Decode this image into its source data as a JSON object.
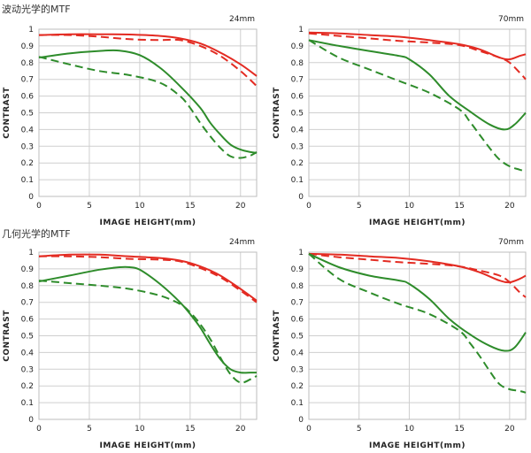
{
  "sections": [
    {
      "title": "波动光学的MTF"
    },
    {
      "title": "几何光学的MTF"
    }
  ],
  "colors": {
    "red": "#e32b22",
    "green": "#2e8c2b"
  },
  "chart_data": [
    {
      "type": "line",
      "section": "波动光学的MTF",
      "focal": "24mm",
      "xlabel": "IMAGE HEIGHT(mm)",
      "ylabel": "CONTRAST",
      "xlim": [
        0,
        21.6
      ],
      "ylim": [
        0,
        1
      ],
      "xticks": [
        0,
        5,
        10,
        15,
        20
      ],
      "yticks": [
        0,
        0.1,
        0.2,
        0.3,
        0.4,
        0.5,
        0.6,
        0.7,
        0.8,
        0.9,
        1
      ],
      "grid": true,
      "series": [
        {
          "color": "red",
          "style": "solid",
          "x": [
            0,
            3,
            6,
            9,
            12,
            14,
            16,
            18,
            20,
            21.6
          ],
          "y": [
            0.965,
            0.97,
            0.97,
            0.968,
            0.96,
            0.945,
            0.915,
            0.86,
            0.79,
            0.72
          ]
        },
        {
          "color": "red",
          "style": "dashed",
          "x": [
            0,
            3,
            6,
            9,
            12,
            14,
            16,
            18,
            20,
            21.6
          ],
          "y": [
            0.965,
            0.965,
            0.955,
            0.94,
            0.935,
            0.935,
            0.9,
            0.84,
            0.75,
            0.66
          ]
        },
        {
          "color": "green",
          "style": "solid",
          "x": [
            0,
            3,
            6,
            8,
            10,
            12,
            14,
            16,
            17,
            18,
            19,
            20,
            21,
            21.6
          ],
          "y": [
            0.83,
            0.855,
            0.87,
            0.872,
            0.845,
            0.77,
            0.66,
            0.53,
            0.44,
            0.37,
            0.31,
            0.28,
            0.265,
            0.26
          ]
        },
        {
          "color": "green",
          "style": "dashed",
          "x": [
            0,
            3,
            6,
            9,
            12,
            14,
            15,
            16,
            17,
            18,
            19,
            20,
            21,
            21.6
          ],
          "y": [
            0.835,
            0.79,
            0.75,
            0.725,
            0.68,
            0.6,
            0.53,
            0.44,
            0.36,
            0.29,
            0.24,
            0.23,
            0.245,
            0.265
          ]
        }
      ]
    },
    {
      "type": "line",
      "section": "波动光学的MTF",
      "focal": "70mm",
      "xlabel": "IMAGE HEIGHT(mm)",
      "ylabel": "CONTRAST",
      "xlim": [
        0,
        21.6
      ],
      "ylim": [
        0,
        1
      ],
      "xticks": [
        0,
        5,
        10,
        15,
        20
      ],
      "yticks": [
        0,
        0.1,
        0.2,
        0.3,
        0.4,
        0.5,
        0.6,
        0.7,
        0.8,
        0.9,
        1
      ],
      "grid": true,
      "series": [
        {
          "color": "red",
          "style": "solid",
          "x": [
            0,
            3,
            6,
            9,
            12,
            15,
            17,
            19,
            20,
            21,
            21.6
          ],
          "y": [
            0.98,
            0.975,
            0.965,
            0.955,
            0.935,
            0.91,
            0.88,
            0.83,
            0.82,
            0.84,
            0.85
          ]
        },
        {
          "color": "red",
          "style": "dashed",
          "x": [
            0,
            3,
            6,
            9,
            12,
            15,
            17,
            19,
            20,
            21,
            21.6
          ],
          "y": [
            0.975,
            0.96,
            0.945,
            0.93,
            0.92,
            0.905,
            0.87,
            0.83,
            0.8,
            0.74,
            0.7
          ]
        },
        {
          "color": "green",
          "style": "solid",
          "x": [
            0,
            3,
            6,
            9,
            10,
            12,
            14,
            16,
            18,
            19.5,
            20.5,
            21.6
          ],
          "y": [
            0.935,
            0.9,
            0.87,
            0.84,
            0.82,
            0.73,
            0.6,
            0.51,
            0.43,
            0.4,
            0.43,
            0.5
          ]
        },
        {
          "color": "green",
          "style": "dashed",
          "x": [
            0,
            3,
            6,
            9,
            12,
            15,
            16,
            17,
            18,
            19,
            20,
            21,
            21.6
          ],
          "y": [
            0.935,
            0.83,
            0.76,
            0.69,
            0.62,
            0.52,
            0.45,
            0.37,
            0.29,
            0.22,
            0.18,
            0.16,
            0.15
          ]
        }
      ]
    },
    {
      "type": "line",
      "section": "几何光学的MTF",
      "focal": "24mm",
      "xlabel": "IMAGE HEIGHT(mm)",
      "ylabel": "CONTRAST",
      "xlim": [
        0,
        21.6
      ],
      "ylim": [
        0,
        1
      ],
      "xticks": [
        0,
        5,
        10,
        15,
        20
      ],
      "yticks": [
        0,
        0.1,
        0.2,
        0.3,
        0.4,
        0.5,
        0.6,
        0.7,
        0.8,
        0.9,
        1
      ],
      "grid": true,
      "series": [
        {
          "color": "red",
          "style": "solid",
          "x": [
            0,
            3,
            6,
            9,
            12,
            14,
            16,
            18,
            20,
            21.6
          ],
          "y": [
            0.975,
            0.985,
            0.985,
            0.975,
            0.965,
            0.95,
            0.915,
            0.86,
            0.78,
            0.71
          ]
        },
        {
          "color": "red",
          "style": "dashed",
          "x": [
            0,
            3,
            6,
            9,
            12,
            14,
            16,
            18,
            20,
            21.6
          ],
          "y": [
            0.975,
            0.975,
            0.97,
            0.96,
            0.955,
            0.945,
            0.905,
            0.85,
            0.77,
            0.7
          ]
        },
        {
          "color": "green",
          "style": "solid",
          "x": [
            0,
            3,
            6,
            8,
            9,
            10,
            12,
            14,
            15,
            16,
            17,
            18,
            19,
            20,
            21,
            21.6
          ],
          "y": [
            0.825,
            0.86,
            0.895,
            0.91,
            0.91,
            0.895,
            0.81,
            0.7,
            0.63,
            0.55,
            0.45,
            0.36,
            0.3,
            0.28,
            0.28,
            0.28
          ]
        },
        {
          "color": "green",
          "style": "dashed",
          "x": [
            0,
            3,
            6,
            9,
            12,
            14,
            15,
            16,
            17,
            18,
            19,
            20,
            21,
            21.6
          ],
          "y": [
            0.83,
            0.815,
            0.8,
            0.78,
            0.74,
            0.69,
            0.64,
            0.57,
            0.48,
            0.37,
            0.27,
            0.22,
            0.24,
            0.26
          ]
        }
      ]
    },
    {
      "type": "line",
      "section": "几何光学的MTF",
      "focal": "70mm",
      "xlabel": "IMAGE HEIGHT(mm)",
      "ylabel": "CONTRAST",
      "xlim": [
        0,
        21.6
      ],
      "ylim": [
        0,
        1
      ],
      "xticks": [
        0,
        5,
        10,
        15,
        20
      ],
      "yticks": [
        0,
        0.1,
        0.2,
        0.3,
        0.4,
        0.5,
        0.6,
        0.7,
        0.8,
        0.9,
        1
      ],
      "grid": true,
      "series": [
        {
          "color": "red",
          "style": "solid",
          "x": [
            0,
            3,
            6,
            9,
            12,
            15,
            17,
            19,
            20,
            21,
            21.6
          ],
          "y": [
            0.99,
            0.985,
            0.975,
            0.965,
            0.945,
            0.915,
            0.88,
            0.83,
            0.82,
            0.84,
            0.86
          ]
        },
        {
          "color": "red",
          "style": "dashed",
          "x": [
            0,
            3,
            6,
            9,
            12,
            15,
            17,
            19,
            20,
            21,
            21.6
          ],
          "y": [
            0.99,
            0.97,
            0.955,
            0.94,
            0.93,
            0.915,
            0.89,
            0.86,
            0.82,
            0.76,
            0.73
          ]
        },
        {
          "color": "green",
          "style": "solid",
          "x": [
            0,
            3,
            6,
            9,
            10,
            12,
            14,
            16,
            18,
            19.5,
            20.5,
            21.6
          ],
          "y": [
            0.99,
            0.91,
            0.86,
            0.83,
            0.81,
            0.72,
            0.6,
            0.51,
            0.44,
            0.41,
            0.43,
            0.52
          ]
        },
        {
          "color": "green",
          "style": "dashed",
          "x": [
            0,
            3,
            6,
            9,
            12,
            15,
            16,
            17,
            18,
            19,
            20,
            21,
            21.6
          ],
          "y": [
            0.99,
            0.84,
            0.76,
            0.69,
            0.63,
            0.53,
            0.46,
            0.38,
            0.29,
            0.21,
            0.18,
            0.17,
            0.16
          ]
        }
      ]
    }
  ]
}
